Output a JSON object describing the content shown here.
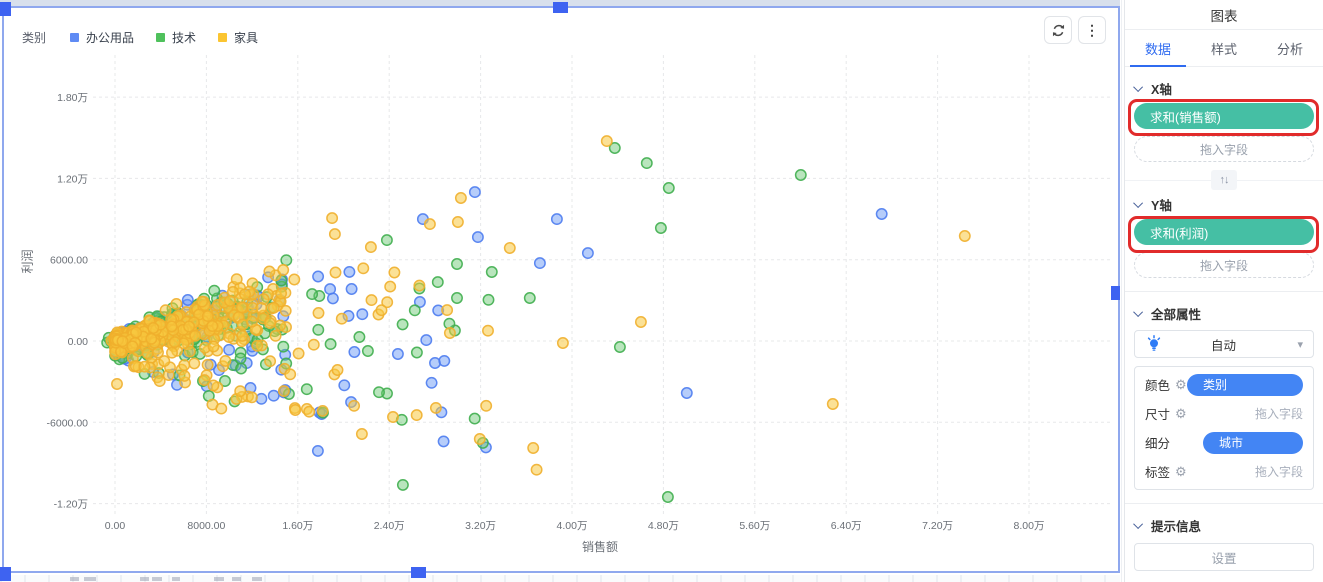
{
  "chart_widget": {
    "legend": {
      "title": "类别",
      "items": [
        {
          "label": "办公用品",
          "color": "#5F8BF4"
        },
        {
          "label": "技术",
          "color": "#4FC15C"
        },
        {
          "label": "家具",
          "color": "#FBC531"
        }
      ]
    },
    "toolbar": {
      "kebab_glyph": "⋮"
    }
  },
  "chart_data": {
    "type": "scatter",
    "xlabel": "销售额",
    "ylabel": "利润",
    "xlim": [
      0,
      80000
    ],
    "ylim": [
      -12000,
      18000
    ],
    "grid": true,
    "legend_position": "top-left",
    "x_ticks": [
      {
        "value": 0,
        "label": "0.00"
      },
      {
        "value": 8000,
        "label": "8000.00"
      },
      {
        "value": 16000,
        "label": "1.60万"
      },
      {
        "value": 24000,
        "label": "2.40万"
      },
      {
        "value": 32000,
        "label": "3.20万"
      },
      {
        "value": 40000,
        "label": "4.00万"
      },
      {
        "value": 48000,
        "label": "4.80万"
      },
      {
        "value": 56000,
        "label": "5.60万"
      },
      {
        "value": 64000,
        "label": "6.40万"
      },
      {
        "value": 72000,
        "label": "7.20万"
      },
      {
        "value": 80000,
        "label": "8.00万"
      }
    ],
    "y_ticks": [
      {
        "value": 18000,
        "label": "1.80万"
      },
      {
        "value": 12000,
        "label": "1.20万"
      },
      {
        "value": 6000,
        "label": "6000.00"
      },
      {
        "value": 0,
        "label": "0.00"
      },
      {
        "value": -6000,
        "label": "-6000.00"
      },
      {
        "value": -12000,
        "label": "-1.20万"
      }
    ],
    "series": [
      {
        "name": "办公用品",
        "color": "#6D9BF5",
        "stroke": "#4C7CF0",
        "fill_opacity": 0.5
      },
      {
        "name": "技术",
        "color": "#63C56D",
        "stroke": "#3FAE4E",
        "fill_opacity": 0.45
      },
      {
        "name": "家具",
        "color": "#F7C93F",
        "stroke": "#EFAF2C",
        "fill_opacity": 0.55
      }
    ],
    "points": [
      [
        43050,
        14750,
        2
      ],
      [
        43750,
        14240,
        1
      ],
      [
        46550,
        13130,
        1
      ],
      [
        48470,
        11290,
        1
      ],
      [
        47780,
        8340,
        1
      ],
      [
        60030,
        12250,
        1
      ],
      [
        67110,
        9370,
        0
      ],
      [
        74380,
        7750,
        2
      ],
      [
        31500,
        10990,
        0
      ],
      [
        30280,
        10550,
        2
      ],
      [
        26950,
        9000,
        0
      ],
      [
        30010,
        8780,
        2
      ],
      [
        27560,
        8630,
        2
      ],
      [
        38680,
        9000,
        0
      ],
      [
        31760,
        7670,
        0
      ],
      [
        34560,
        6860,
        2
      ],
      [
        23800,
        7450,
        1
      ],
      [
        19000,
        9070,
        2
      ],
      [
        19250,
        7890,
        2
      ],
      [
        22400,
        6930,
        2
      ],
      [
        41390,
        6490,
        0
      ],
      [
        29930,
        5680,
        1
      ],
      [
        32980,
        5090,
        1
      ],
      [
        37190,
        5750,
        0
      ],
      [
        26690,
        2880,
        0
      ],
      [
        36310,
        3170,
        1
      ],
      [
        29930,
        3170,
        1
      ],
      [
        46030,
        1400,
        2
      ],
      [
        44190,
        -440,
        1
      ],
      [
        39200,
        -150,
        2
      ],
      [
        29310,
        590,
        2
      ],
      [
        24760,
        -960,
        0
      ],
      [
        22140,
        -740,
        1
      ],
      [
        28090,
        -4940,
        2
      ],
      [
        24330,
        -5610,
        2
      ],
      [
        21610,
        -6860,
        2
      ],
      [
        32200,
        -7520,
        1
      ],
      [
        25200,
        -10620,
        1
      ],
      [
        50050,
        -3840,
        0
      ],
      [
        48390,
        -11510,
        1
      ],
      [
        16800,
        -5020,
        2
      ],
      [
        36600,
        -7900,
        2
      ],
      [
        36900,
        -9500,
        2
      ],
      [
        17760,
        -8110,
        0
      ],
      [
        62830,
        -4650,
        2
      ],
      [
        175,
        -3170,
        2
      ]
    ],
    "dense_cluster": {
      "note": "several hundred overlapping points fan out from the origin; individually unreadable, regenerated procedurally from this spec",
      "seed": 42,
      "core": [
        {
          "series": 0,
          "count": 150
        },
        {
          "series": 1,
          "count": 240
        },
        {
          "series": 2,
          "count": 420
        }
      ],
      "core_sales_max": 15000,
      "fan": {
        "count": 130,
        "weights": [
          0.27,
          0.3,
          0.43
        ],
        "sales_min": 2500,
        "sales_max": 33000
      }
    }
  },
  "panel": {
    "title": "图表",
    "tabs": [
      {
        "label": "数据",
        "active": true
      },
      {
        "label": "样式",
        "active": false
      },
      {
        "label": "分析",
        "active": false
      }
    ],
    "x_axis": {
      "header": "X轴",
      "field_pill": "求和(销售额)",
      "drop_placeholder": "拖入字段"
    },
    "swap_glyph": "↑↓",
    "y_axis": {
      "header": "Y轴",
      "field_pill": "求和(利润)",
      "drop_placeholder": "拖入字段"
    },
    "properties": {
      "header": "全部属性",
      "mode_select": {
        "value": "自动",
        "caret": "▾"
      },
      "gear_glyph": "⚙",
      "rows": [
        {
          "label": "颜色",
          "pill": "类别"
        },
        {
          "label": "尺寸",
          "placeholder": "拖入字段"
        },
        {
          "label": "细分",
          "pill": "城市"
        },
        {
          "label": "标签",
          "placeholder": "拖入字段"
        }
      ],
      "pill_color": "#4385F4"
    },
    "tooltip": {
      "header": "提示信息",
      "settings_button": "设置"
    },
    "accent_teal": "#45BFA4",
    "annotation_color": "#E12B2B"
  }
}
